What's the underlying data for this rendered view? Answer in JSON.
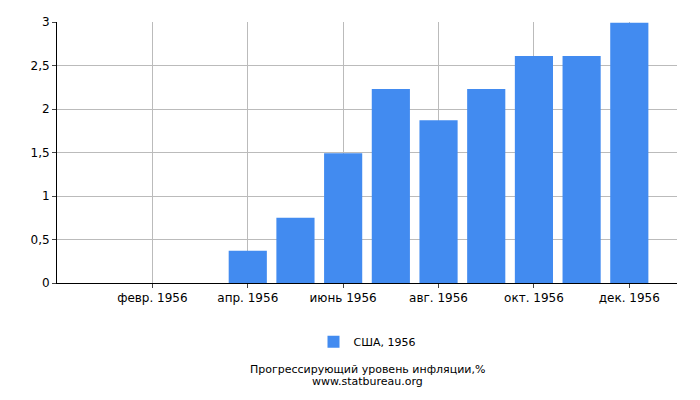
{
  "chart_data": {
    "type": "bar",
    "title": "Прогрессирующий уровень инфляции,%",
    "subtitle": "www.statbureau.org",
    "categories": [
      null,
      "февр. 1956",
      null,
      "апр. 1956",
      null,
      "июнь 1956",
      null,
      "авг. 1956",
      null,
      "окт. 1956",
      null,
      "дек. 1956"
    ],
    "series": [
      {
        "name": "США, 1956",
        "color": "#428bf0",
        "values": [
          0,
          0,
          0,
          0.37,
          0.75,
          1.49,
          2.23,
          1.87,
          2.23,
          2.61,
          2.61,
          2.99
        ]
      }
    ],
    "ylim": [
      0,
      3
    ],
    "yticks": [
      0,
      {
        "value": 0.5,
        "label": "0,5"
      },
      1,
      {
        "value": 1.5,
        "label": "1,5"
      },
      2,
      {
        "value": 2.5,
        "label": "2,5"
      },
      3
    ],
    "grid": true,
    "legend": "bottom"
  }
}
